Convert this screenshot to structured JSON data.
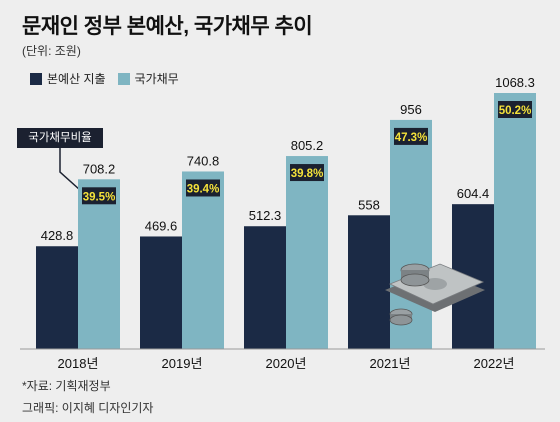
{
  "title": "문재인 정부 본예산, 국가채무 추이",
  "unit_label": "(단위: 조원)",
  "ratio_label": "국가채무비율",
  "source": "*자료: 기획재정부",
  "credit": "그래픽: 이지혜 디자인기자",
  "colors": {
    "budget": "#1b2a45",
    "debt": "#7fb5c2",
    "ratio_box": "#1b2130",
    "ratio_text": "#f5e23a"
  },
  "chart_data": {
    "type": "bar",
    "title": "문재인 정부 본예산, 국가채무 추이",
    "categories": [
      "2018년",
      "2019년",
      "2020년",
      "2021년",
      "2022년"
    ],
    "series": [
      {
        "name": "본예산 지출",
        "values": [
          428.8,
          469.6,
          512.3,
          558,
          604.4
        ],
        "labels": [
          "428.8",
          "469.6",
          "512.3",
          "558",
          "604.4"
        ]
      },
      {
        "name": "국가채무",
        "values": [
          708.2,
          740.8,
          805.2,
          956,
          1068.3
        ],
        "labels": [
          "708.2",
          "740.8",
          "805.2",
          "956",
          "1068.3"
        ]
      }
    ],
    "debt_ratio_labels": [
      "39.5%",
      "39.4%",
      "39.8%",
      "47.3%",
      "50.2%"
    ],
    "ylim": [
      0,
      1068.3
    ],
    "grid": false,
    "legend": "top-left"
  }
}
